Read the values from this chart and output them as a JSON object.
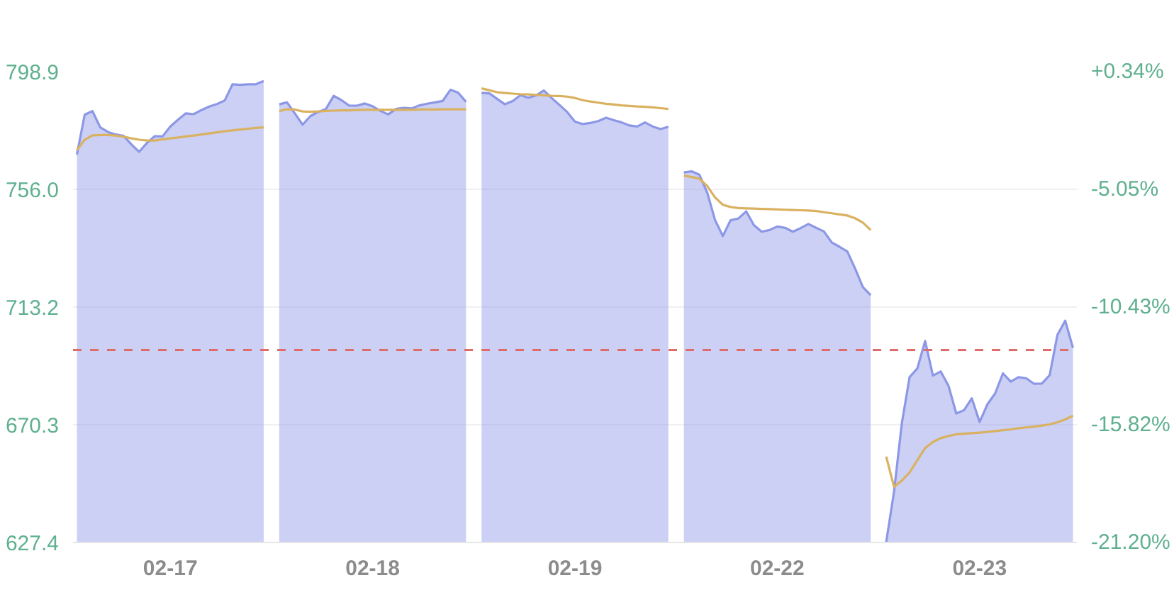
{
  "chart_data": {
    "type": "area",
    "categories": [
      null,
      null,
      null,
      null,
      null,
      null,
      null,
      null,
      null,
      null,
      null,
      null,
      "02-17",
      null,
      null,
      null,
      null,
      null,
      null,
      null,
      null,
      null,
      null,
      null,
      null,
      null,
      null,
      null,
      null,
      null,
      null,
      null,
      null,
      null,
      null,
      null,
      null,
      null,
      "02-18",
      null,
      null,
      null,
      null,
      null,
      null,
      null,
      null,
      null,
      null,
      null,
      null,
      null,
      null,
      null,
      null,
      null,
      null,
      null,
      null,
      null,
      null,
      null,
      null,
      null,
      "02-19",
      null,
      null,
      null,
      null,
      null,
      null,
      null,
      null,
      null,
      null,
      null,
      null,
      null,
      null,
      null,
      null,
      null,
      null,
      null,
      null,
      null,
      null,
      null,
      null,
      null,
      "02-22",
      null,
      null,
      null,
      null,
      null,
      null,
      null,
      null,
      null,
      null,
      null,
      null,
      null,
      null,
      null,
      null,
      null,
      null,
      null,
      null,
      null,
      null,
      null,
      null,
      null,
      "02-23",
      null,
      null,
      null,
      null,
      null,
      null,
      null,
      null,
      null,
      null,
      null,
      null
    ],
    "ylim": [
      627.4,
      798.9
    ],
    "yticks": [
      798.9,
      {
        "value": 756,
        "label": "756.0"
      },
      713.2,
      670.3,
      627.4
    ],
    "y2lim": [
      -21.2,
      0.34
    ],
    "y2ticks": [
      {
        "value": 0.34,
        "label": "+0.34%"
      },
      {
        "value": -5.05,
        "label": "-5.05%"
      },
      {
        "value": -10.43,
        "label": "-10.43%"
      },
      {
        "value": -15.82,
        "label": "-15.82%"
      },
      {
        "value": -21.2,
        "label": "-21.20%"
      }
    ],
    "grid": "y",
    "ref_lines": [
      {
        "axis": "y",
        "value": 697.5,
        "color": "#e06b6b",
        "line_style": "dashed"
      }
    ],
    "series": [
      {
        "color": "#8c97e6",
        "values": [
          768.7,
          783.2,
          784.5,
          778.6,
          776.9,
          776.0,
          775.5,
          772.4,
          769.7,
          772.9,
          775.4,
          775.3,
          778.9,
          781.4,
          783.7,
          783.4,
          784.9,
          786.2,
          787.1,
          788.4,
          794.3,
          794.1,
          794.3,
          794.3,
          795.5,
          null,
          787.0,
          787.7,
          783.7,
          779.6,
          782.7,
          784.2,
          785.3,
          790.1,
          788.5,
          786.5,
          786.5,
          787.3,
          786.3,
          784.6,
          783.3,
          785.3,
          785.7,
          785.5,
          786.6,
          787.2,
          787.7,
          788.2,
          792.3,
          791.2,
          787.9,
          null,
          791.2,
          791.0,
          789.0,
          787.0,
          788.2,
          790.3,
          789.4,
          790.2,
          792.0,
          789.3,
          786.8,
          784.2,
          780.7,
          779.8,
          780.2,
          780.9,
          782.1,
          781.2,
          780.4,
          779.3,
          778.9,
          780.4,
          778.9,
          778.0,
          778.8,
          null,
          762.2,
          762.6,
          761.3,
          754.8,
          744.9,
          739.0,
          744.8,
          745.4,
          748.0,
          743.0,
          740.6,
          741.2,
          742.5,
          742.0,
          740.6,
          741.9,
          743.4,
          742.0,
          740.7,
          736.7,
          735.1,
          733.4,
          727.2,
          720.4,
          717.5,
          null,
          627.6,
          645.8,
          670.7,
          687.6,
          690.8,
          700.8,
          688.2,
          689.7,
          684.5,
          674.4,
          675.6,
          679.9,
          671.3,
          677.7,
          681.7,
          689.0,
          686.0,
          687.6,
          687.2,
          685.2,
          685.3,
          688.3,
          703.0,
          708.2,
          698.3
        ]
      },
      {
        "type": "line",
        "color": "#d9b160",
        "values": [
          770.3,
          774.1,
          775.7,
          775.8,
          775.8,
          775.6,
          775.2,
          774.6,
          774.1,
          773.8,
          773.8,
          774.2,
          774.6,
          774.9,
          775.3,
          775.6,
          776.0,
          776.4,
          776.8,
          777.2,
          777.5,
          777.8,
          778.1,
          778.4,
          778.6,
          null,
          784.5,
          785.2,
          785.1,
          784.4,
          784.3,
          784.4,
          784.6,
          784.7,
          784.8,
          784.8,
          784.9,
          785.0,
          785.0,
          785.0,
          785.0,
          785.0,
          785.0,
          785.0,
          785.1,
          785.1,
          785.1,
          785.2,
          785.2,
          785.2,
          785.2,
          null,
          792.8,
          792.1,
          791.4,
          791.1,
          790.9,
          790.7,
          790.6,
          790.4,
          790.3,
          790.1,
          790.0,
          789.8,
          789.3,
          788.5,
          788.0,
          787.6,
          787.2,
          786.9,
          786.6,
          786.4,
          786.2,
          786.1,
          785.9,
          785.6,
          785.3,
          null,
          761.0,
          760.5,
          759.9,
          757.2,
          753.1,
          750.4,
          749.6,
          749.2,
          749.1,
          749.0,
          748.9,
          748.8,
          748.7,
          748.6,
          748.5,
          748.4,
          748.3,
          748.1,
          747.7,
          747.3,
          746.9,
          746.5,
          745.5,
          743.9,
          741.2,
          null,
          658.7,
          647.7,
          649.9,
          652.9,
          657.4,
          661.8,
          664.0,
          665.4,
          666.2,
          666.8,
          667.0,
          667.2,
          667.4,
          667.7,
          668.0,
          668.3,
          668.6,
          669.0,
          669.3,
          669.6,
          670.0,
          670.4,
          671.2,
          672.2,
          673.6
        ]
      }
    ]
  }
}
